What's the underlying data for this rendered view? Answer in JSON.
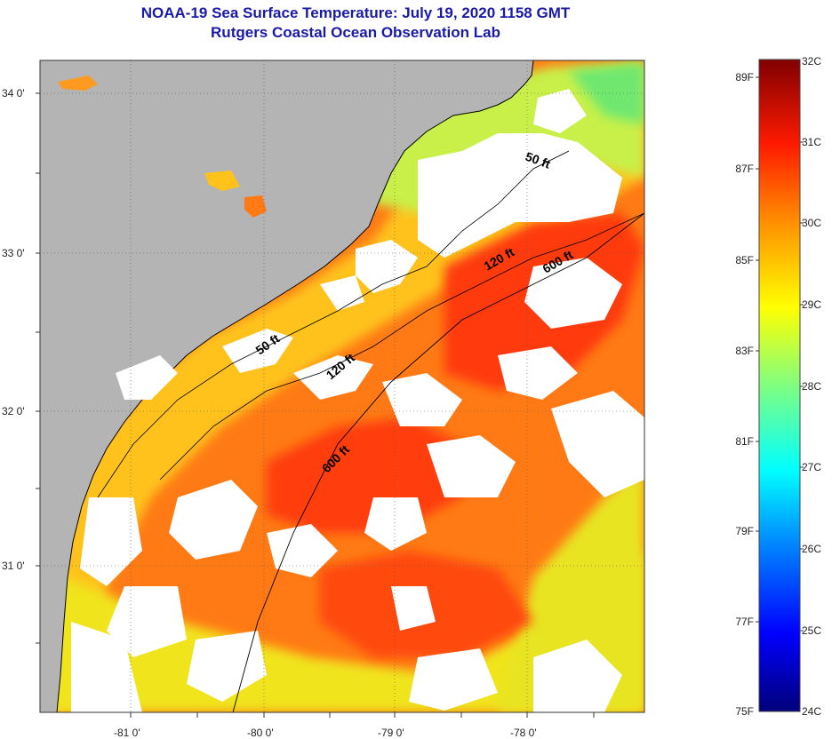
{
  "header": {
    "title": "NOAA-19 Sea Surface Temperature:  July 19, 2020 1158 GMT",
    "subtitle": "Rutgers Coastal Ocean Observation Lab"
  },
  "map": {
    "lat_labels": [
      "34 0'",
      "33 0'",
      "32 0'",
      "31 0'"
    ],
    "lon_labels": [
      "-81 0'",
      "-80 0'",
      "-79 0'",
      "-78 0'"
    ],
    "contour_labels": [
      "50 ft",
      "120 ft",
      "600 ft",
      "50 ft",
      "120 ft",
      "600 ft"
    ],
    "colors": {
      "land": "#b4b4b4",
      "cloud": "#ffffff",
      "warm": "#ff5a10",
      "mid": "#ff9a10",
      "cool": "#e8e820",
      "cold": "#80e060"
    }
  },
  "colorbar": {
    "fahrenheit_labels": [
      "89F",
      "87F",
      "85F",
      "83F",
      "81F",
      "79F",
      "77F",
      "75F"
    ],
    "celsius_labels": [
      "32C",
      "31C",
      "30C",
      "29C",
      "28C",
      "27C",
      "26C",
      "25C",
      "24C"
    ]
  }
}
